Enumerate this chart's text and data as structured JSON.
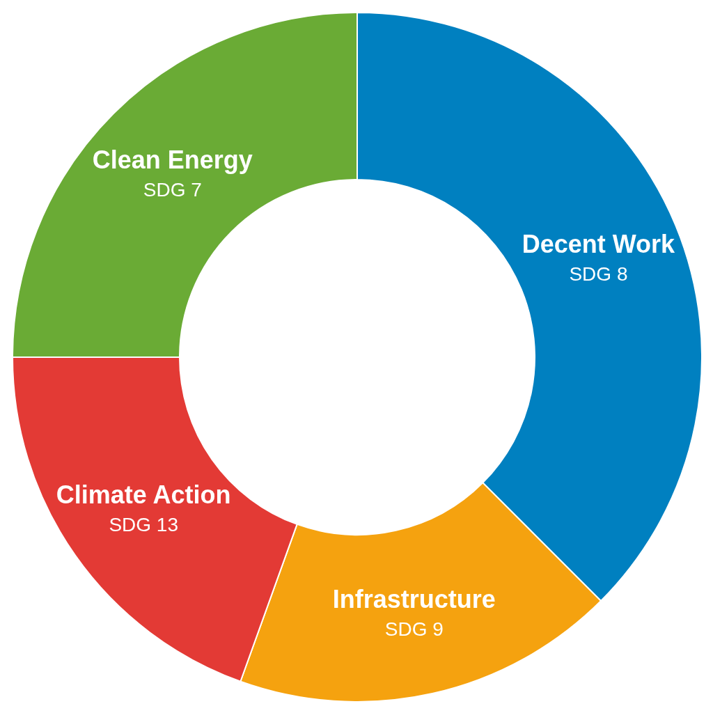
{
  "chart_data": {
    "type": "donut",
    "categories": [
      "Decent Work",
      "Infrastructure",
      "Climate Action",
      "Clean Energy"
    ],
    "values": [
      37.5,
      18,
      19.5,
      25
    ],
    "colors": [
      "#0080c0",
      "#f5a20f",
      "#e33a35",
      "#6aab35"
    ],
    "annotations": [
      "SDG 8",
      "SDG 9",
      "SDG 13",
      "SDG 7"
    ],
    "legend": false
  }
}
